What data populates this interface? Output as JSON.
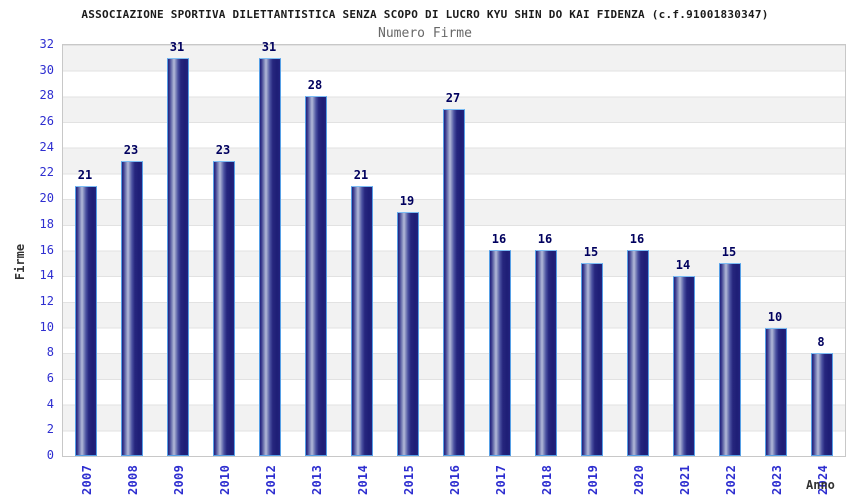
{
  "header": {
    "title": "ASSOCIAZIONE SPORTIVA DILETTANTISTICA SENZA SCOPO DI LUCRO KYU SHIN DO KAI FIDENZA (c.f.91001830347)",
    "subtitle": "Numero Firme"
  },
  "chart_data": {
    "type": "bar",
    "title": "ASSOCIAZIONE SPORTIVA DILETTANTISTICA SENZA SCOPO DI LUCRO KYU SHIN DO KAI FIDENZA (c.f.91001830347)",
    "subtitle": "Numero Firme",
    "categories": [
      "2007",
      "2008",
      "2009",
      "2010",
      "2012",
      "2013",
      "2014",
      "2015",
      "2016",
      "2017",
      "2018",
      "2019",
      "2020",
      "2021",
      "2022",
      "2023",
      "2024"
    ],
    "values": [
      21,
      23,
      31,
      23,
      31,
      28,
      21,
      19,
      27,
      16,
      16,
      15,
      16,
      14,
      15,
      10,
      8
    ],
    "xlabel": "Anno",
    "ylabel": "Firme",
    "ylim": [
      0,
      32
    ],
    "ytick_step": 2,
    "grid": "alternating-horizontal-bands",
    "legend": "none",
    "value_labels": "above-bars",
    "xtick_rotation": -90
  },
  "colors": {
    "band_gray": "#f2f2f2",
    "band_white": "#ffffff",
    "grid_line": "#e2e2e2",
    "plot_border": "#c8c8c8",
    "tick_label": "#2e2ed0",
    "value_label": "#00005e",
    "bar_border": "#56a0e6",
    "bar_dark": "#23237e",
    "bar_light": "#b4bad9",
    "title": "#1b1b1b",
    "subtitle": "#686868",
    "axis_title": "#333333"
  }
}
